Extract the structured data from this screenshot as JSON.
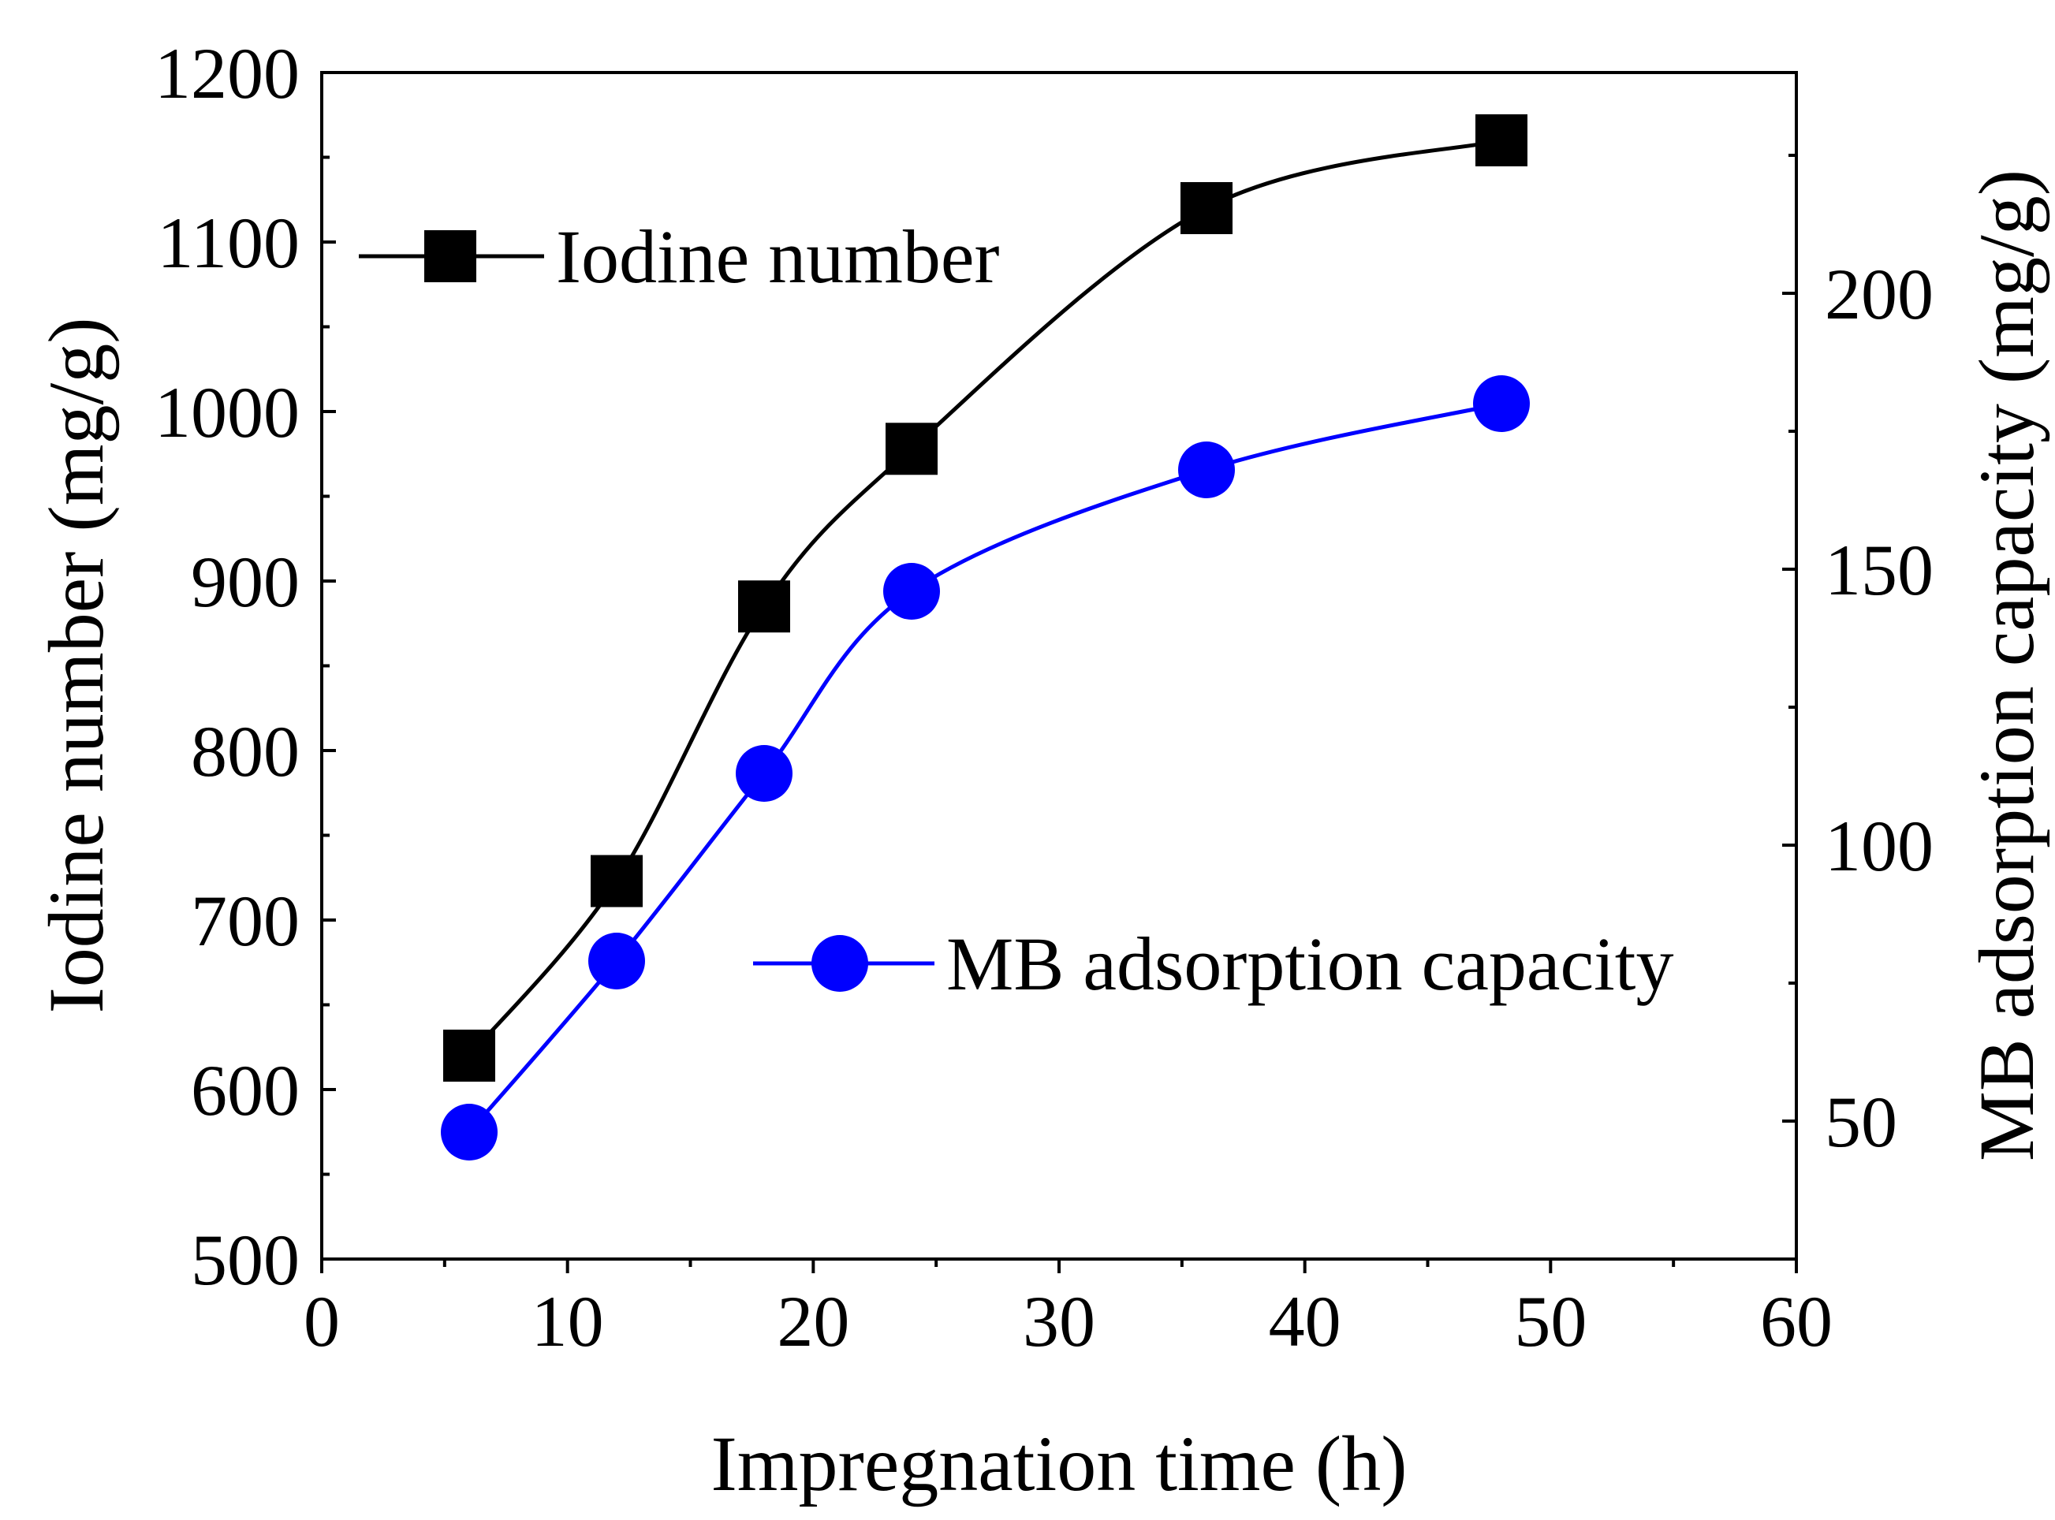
{
  "chart_data": {
    "type": "line",
    "x": [
      6,
      12,
      18,
      24,
      36,
      48
    ],
    "xlabel": "Impregnation time (h)",
    "xlim": [
      0,
      60
    ],
    "xticks": [
      0,
      10,
      20,
      30,
      40,
      50,
      60
    ],
    "ylabel_left": "Iodine number (mg/g)",
    "ylim_left": [
      500,
      1200
    ],
    "yticks_left": [
      500,
      600,
      700,
      800,
      900,
      1000,
      1100,
      1200
    ],
    "ylabel_right": "MB adsorption capacity (mg/g)",
    "ylim_right": [
      25,
      240
    ],
    "yticks_right": [
      50,
      100,
      150,
      200
    ],
    "series": [
      {
        "name": "Iodine number",
        "axis": "left",
        "marker": "square",
        "color": "#000000",
        "values": [
          620,
          723,
          885,
          978,
          1120,
          1160
        ]
      },
      {
        "name": "MB adsorption capacity",
        "axis": "right",
        "marker": "circle",
        "color": "#0000ff",
        "values": [
          48,
          79,
          113,
          146,
          168,
          180
        ]
      }
    ]
  }
}
